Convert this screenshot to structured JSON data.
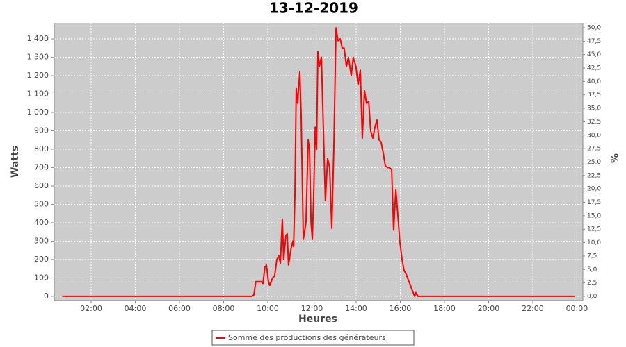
{
  "chart_data": {
    "type": "line",
    "title": "13-12-2019",
    "x_label": "Heures",
    "y_label": "Watts",
    "y2_label": "%",
    "x": [
      0.7,
      9.28,
      9.37,
      9.46,
      9.69,
      9.78,
      9.87,
      9.94,
      10.03,
      10.09,
      10.22,
      10.31,
      10.41,
      10.5,
      10.57,
      10.66,
      10.72,
      10.82,
      10.88,
      10.94,
      11.04,
      11.13,
      11.17,
      11.23,
      11.29,
      11.35,
      11.45,
      11.51,
      11.61,
      11.73,
      11.83,
      11.89,
      11.96,
      12.02,
      12.08,
      12.15,
      12.21,
      12.27,
      12.33,
      12.43,
      12.52,
      12.61,
      12.71,
      12.8,
      12.9,
      12.99,
      13.09,
      13.18,
      13.28,
      13.37,
      13.46,
      13.56,
      13.65,
      13.78,
      13.87,
      13.99,
      14.09,
      14.19,
      14.28,
      14.38,
      14.47,
      14.57,
      14.66,
      14.76,
      14.85,
      14.94,
      15.04,
      15.13,
      15.23,
      15.32,
      15.42,
      15.5,
      15.61,
      15.7,
      15.8,
      15.89,
      15.98,
      16.08,
      16.17,
      16.27,
      16.36,
      16.46,
      16.55,
      16.65,
      16.71,
      16.8,
      23.89
    ],
    "series": [
      {
        "name": "Somme des productions des  générateurs",
        "color": "#ff0000",
        "values": [
          0,
          0,
          8,
          80,
          80,
          70,
          160,
          170,
          80,
          60,
          100,
          110,
          200,
          220,
          180,
          420,
          200,
          330,
          340,
          170,
          250,
          300,
          270,
          550,
          1130,
          1050,
          1220,
          1000,
          310,
          400,
          850,
          800,
          400,
          310,
          550,
          920,
          800,
          1330,
          1250,
          1300,
          900,
          520,
          750,
          700,
          370,
          800,
          1460,
          1390,
          1400,
          1350,
          1350,
          1250,
          1300,
          1200,
          1300,
          1250,
          1150,
          1230,
          860,
          1120,
          1050,
          1060,
          900,
          860,
          920,
          960,
          850,
          840,
          780,
          710,
          700,
          700,
          690,
          360,
          580,
          440,
          300,
          200,
          140,
          120,
          90,
          60,
          30,
          0,
          20,
          0,
          0
        ]
      }
    ],
    "xlim": [
      0.33,
      24.27
    ],
    "xticks": [
      {
        "value": 2,
        "label": "02:00"
      },
      {
        "value": 4,
        "label": "04:00"
      },
      {
        "value": 6,
        "label": "06:00"
      },
      {
        "value": 8,
        "label": "08:00"
      },
      {
        "value": 10,
        "label": "10:00"
      },
      {
        "value": 12,
        "label": "12:00"
      },
      {
        "value": 14,
        "label": "14:00"
      },
      {
        "value": 16,
        "label": "16:00"
      },
      {
        "value": 18,
        "label": "18:00"
      },
      {
        "value": 20,
        "label": "20:00"
      },
      {
        "value": 22,
        "label": "22:00"
      },
      {
        "value": 24,
        "label": "00:00"
      }
    ],
    "ylim": [
      -23,
      1487
    ],
    "yticks": [
      0,
      100,
      200,
      300,
      400,
      500,
      600,
      700,
      800,
      900,
      {
        "value": 1000,
        "label": "1 000"
      },
      {
        "value": 1100,
        "label": "1 100"
      },
      {
        "value": 1200,
        "label": "1 200"
      },
      {
        "value": 1300,
        "label": "1 300"
      },
      {
        "value": 1400,
        "label": "1 400"
      }
    ],
    "y2lim": [
      -0.78,
      50.9
    ],
    "y2ticks": [
      {
        "value": 0,
        "label": "0,0"
      },
      {
        "value": 2.5,
        "label": "2,5"
      },
      {
        "value": 5,
        "label": "5,0"
      },
      {
        "value": 7.5,
        "label": "7,5"
      },
      {
        "value": 10,
        "label": "10,0"
      },
      {
        "value": 12.5,
        "label": "12,5"
      },
      {
        "value": 15,
        "label": "15,0"
      },
      {
        "value": 17.5,
        "label": "17,5"
      },
      {
        "value": 20,
        "label": "20,0"
      },
      {
        "value": 22.5,
        "label": "22,5"
      },
      {
        "value": 25,
        "label": "25,0"
      },
      {
        "value": 27.5,
        "label": "27,5"
      },
      {
        "value": 30,
        "label": "30,0"
      },
      {
        "value": 32.5,
        "label": "32,5"
      },
      {
        "value": 35,
        "label": "35,0"
      },
      {
        "value": 37.5,
        "label": "37,5"
      },
      {
        "value": 40,
        "label": "40,0"
      },
      {
        "value": 42.5,
        "label": "42,5"
      },
      {
        "value": 45,
        "label": "45,0"
      },
      {
        "value": 47.5,
        "label": "47,5"
      },
      {
        "value": 50,
        "label": "50,0"
      }
    ],
    "grid": true
  }
}
